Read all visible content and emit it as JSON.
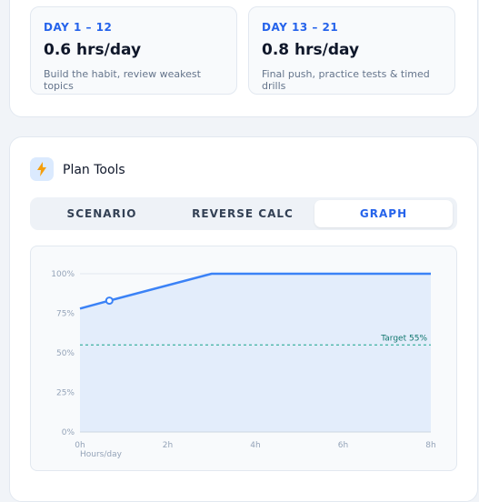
{
  "phases": [
    {
      "label": "DAY 1 – 12",
      "rate": "0.6 hrs/day",
      "note": "Build the habit, review weakest topics"
    },
    {
      "label": "DAY 13 – 21",
      "rate": "0.8 hrs/day",
      "note": "Final push, practice tests & timed drills"
    }
  ],
  "tools": {
    "title": "Plan Tools",
    "tabs": [
      "SCENARIO",
      "REVERSE CALC",
      "GRAPH"
    ],
    "active_tab": 2
  },
  "chart_data": {
    "type": "line",
    "x": [
      0,
      0.67,
      3,
      8
    ],
    "values": [
      78,
      83,
      100,
      100
    ],
    "color": "#3b82f6",
    "area_color": "#e3edfb",
    "highlight_index": 1,
    "xlim": [
      0,
      8
    ],
    "ylim": [
      0,
      100
    ],
    "xticks": [
      {
        "value": 0,
        "label": "0h"
      },
      {
        "value": 2,
        "label": "2h"
      },
      {
        "value": 4,
        "label": "4h"
      },
      {
        "value": 6,
        "label": "6h"
      },
      {
        "value": 8,
        "label": "8h"
      }
    ],
    "yticks": [
      {
        "value": 0,
        "label": "0%"
      },
      {
        "value": 25,
        "label": "25%"
      },
      {
        "value": 50,
        "label": "50%"
      },
      {
        "value": 75,
        "label": "75%"
      },
      {
        "value": 100,
        "label": "100%"
      }
    ],
    "xlabel": "Hours/day",
    "grid": true,
    "annotations": [
      {
        "label": "Target 55%",
        "value": 55,
        "color": "#14a38b"
      }
    ]
  }
}
